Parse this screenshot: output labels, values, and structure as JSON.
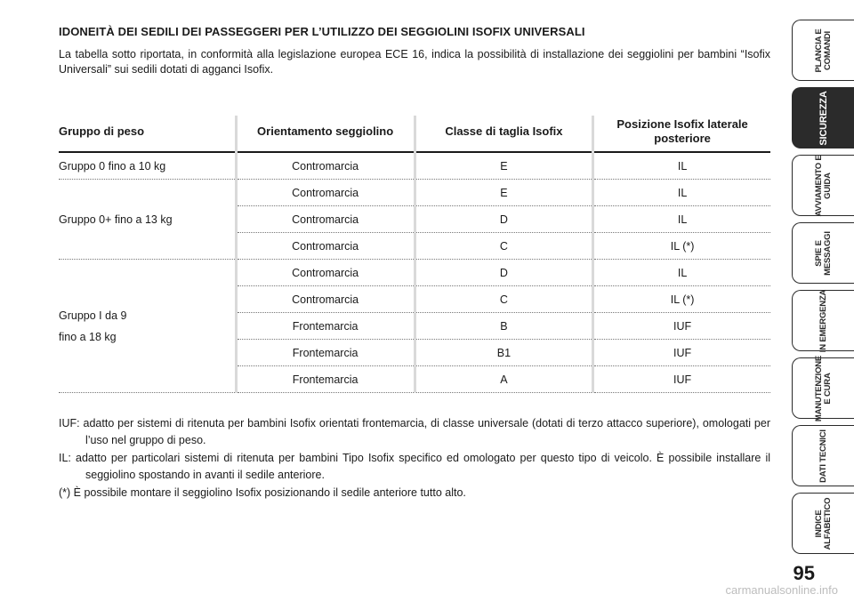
{
  "section": {
    "title": "IDONEITÀ DEI SEDILI DEI PASSEGGERI PER L’UTILIZZO DEI SEGGIOLINI ISOFIX UNIVERSALI",
    "intro": "La tabella sotto riportata, in conformità alla legislazione europea ECE 16, indica la possibilità di installazione dei seggiolini per bambini “Isofix Universali” sui sedili dotati di agganci Isofix."
  },
  "table": {
    "headers": {
      "group": "Gruppo di peso",
      "orientation": "Orientamento seggiolino",
      "size_class": "Classe di taglia Isofix",
      "position": "Posizione Isofix laterale posteriore"
    },
    "groups": {
      "g0": "Gruppo 0 fino a 10 kg",
      "g0plus": "Gruppo 0+ fino a 13 kg",
      "g1_line1": "Gruppo I da 9",
      "g1_line2": "fino a 18 kg"
    },
    "rows": [
      {
        "orientation": "Contromarcia",
        "size_class": "E",
        "position": "IL"
      },
      {
        "orientation": "Contromarcia",
        "size_class": "E",
        "position": "IL"
      },
      {
        "orientation": "Contromarcia",
        "size_class": "D",
        "position": "IL"
      },
      {
        "orientation": "Contromarcia",
        "size_class": "C",
        "position": "IL (*)"
      },
      {
        "orientation": "Contromarcia",
        "size_class": "D",
        "position": "IL"
      },
      {
        "orientation": "Contromarcia",
        "size_class": "C",
        "position": "IL (*)"
      },
      {
        "orientation": "Frontemarcia",
        "size_class": "B",
        "position": "IUF"
      },
      {
        "orientation": "Frontemarcia",
        "size_class": "B1",
        "position": "IUF"
      },
      {
        "orientation": "Frontemarcia",
        "size_class": "A",
        "position": "IUF"
      }
    ]
  },
  "notes": [
    {
      "text": "IUF: adatto per sistemi di ritenuta per bambini Isofix orientati frontemarcia, di classe universale (dotati di terzo attacco superiore), omologati per l’uso nel gruppo di peso."
    },
    {
      "text": "IL: adatto per particolari sistemi di ritenuta per bambini Tipo Isofix specifico ed omologato per questo tipo di veicolo. È possibile installare il seggiolino spostando in avanti il sedile anteriore."
    },
    {
      "text": "(*) È possibile montare il seggiolino Isofix posizionando il sedile anteriore tutto alto."
    }
  ],
  "sidebar": {
    "tabs": [
      {
        "label": "PLANCIA E COMANDI"
      },
      {
        "label": "SICUREZZA"
      },
      {
        "label": "AVVIAMENTO E GUIDA"
      },
      {
        "label": "SPIE E MESSAGGI"
      },
      {
        "label": "IN EMERGENZA"
      },
      {
        "label": "MANUTENZIONE E CURA"
      },
      {
        "label": "DATI TECNICI"
      },
      {
        "label": "INDICE ALFABETICO"
      }
    ],
    "active_index": 1
  },
  "page_number": "95",
  "watermark": "carmanualsonline.info"
}
